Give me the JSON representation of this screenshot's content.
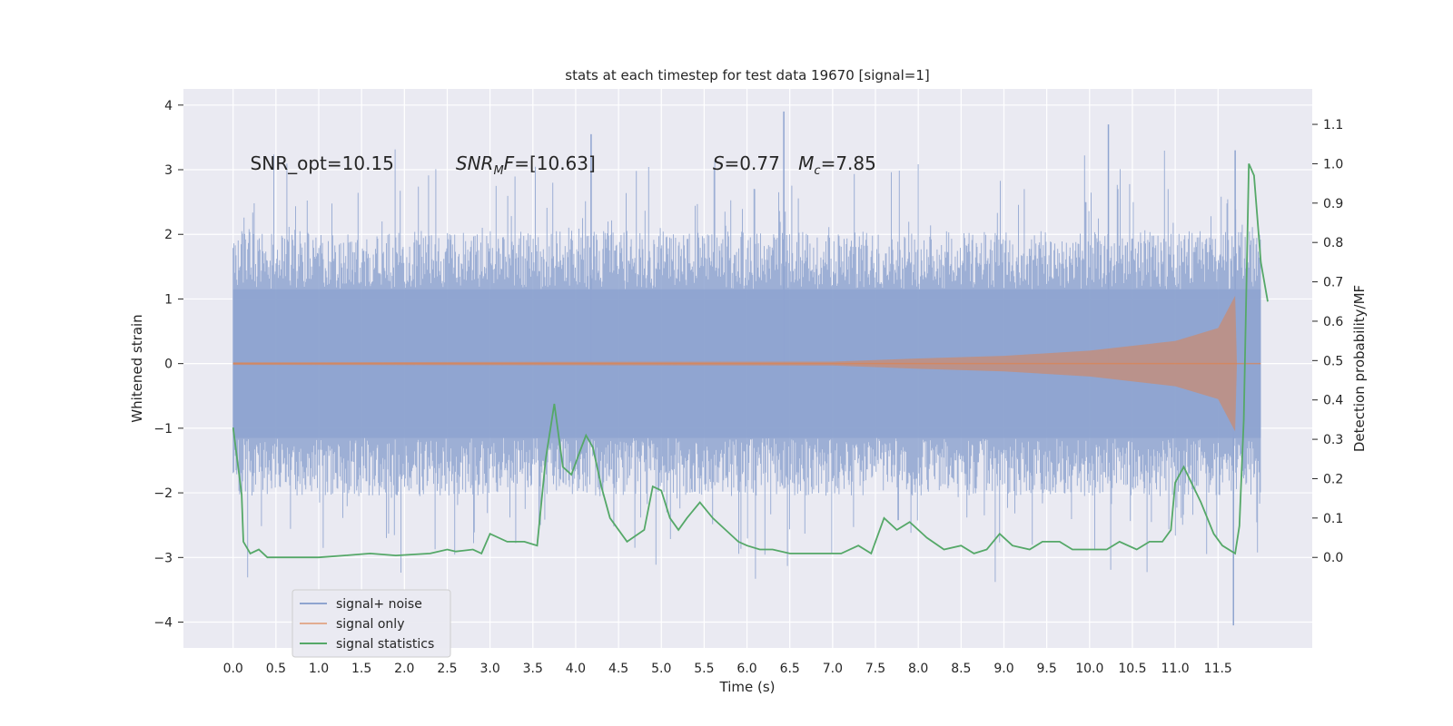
{
  "chart_data": {
    "type": "line",
    "title": "stats at each timestep for test data 19670 [signal=1]",
    "xlabel": "Time (s)",
    "ylabel": "Whitened strain",
    "y2label": "Detection probability/MF",
    "xlim": [
      -0.58,
      12.6
    ],
    "ylim": [
      -4.4,
      4.25
    ],
    "y2lim": [
      -0.23,
      1.19
    ],
    "xticks": [
      0.0,
      0.5,
      1.0,
      1.5,
      2.0,
      2.5,
      3.0,
      3.5,
      4.0,
      4.5,
      5.0,
      5.5,
      6.0,
      6.5,
      7.0,
      7.5,
      8.0,
      8.5,
      9.0,
      9.5,
      10.0,
      10.5,
      11.0,
      11.5
    ],
    "xticklabels": [
      "0.0",
      "0.5",
      "1.0",
      "1.5",
      "2.0",
      "2.5",
      "3.0",
      "3.5",
      "4.0",
      "4.5",
      "5.0",
      "5.5",
      "6.0",
      "6.5",
      "7.0",
      "7.5",
      "8.0",
      "8.5",
      "9.0",
      "9.5",
      "10.0",
      "10.5",
      "11.0",
      "11.5"
    ],
    "yticks": [
      -4,
      -3,
      -2,
      -1,
      0,
      1,
      2,
      3,
      4
    ],
    "yticklabels": [
      "−4",
      "−3",
      "−2",
      "−1",
      "0",
      "1",
      "2",
      "3",
      "4"
    ],
    "y2ticks": [
      0.0,
      0.1,
      0.2,
      0.3,
      0.4,
      0.5,
      0.6,
      0.7,
      0.8,
      0.9,
      1.0,
      1.1
    ],
    "y2ticklabels": [
      "0.0",
      "0.1",
      "0.2",
      "0.3",
      "0.4",
      "0.5",
      "0.6",
      "0.7",
      "0.8",
      "0.9",
      "1.0",
      "1.1"
    ],
    "grid": true,
    "legend_position": "bottom-left",
    "annotations": [
      {
        "text": "SNR_opt=10.15",
        "x": 0.2,
        "y": 3.1
      },
      {
        "text": "SNRMF=[10.63]",
        "x": 2.6,
        "y": 3.1
      },
      {
        "text": "S=0.77",
        "x": 5.6,
        "y": 3.1
      },
      {
        "text": "Mc=7.85",
        "x": 6.6,
        "y": 3.1
      }
    ],
    "series": [
      {
        "name": "signal+ noise",
        "color": "#8fa4d0",
        "t_start": 0.0,
        "t_end": 12.0,
        "envelope_upper": 1.15,
        "envelope_lower": -1.15,
        "spike_max": 3.9,
        "spike_min": -4.05
      },
      {
        "name": "signal only",
        "color": "#dd8452",
        "t_start": 0.0,
        "t_end": 12.0,
        "amplitude_points": [
          [
            0.0,
            0.02
          ],
          [
            7.0,
            0.03
          ],
          [
            8.0,
            0.08
          ],
          [
            9.0,
            0.12
          ],
          [
            10.0,
            0.2
          ],
          [
            11.0,
            0.35
          ],
          [
            11.5,
            0.55
          ],
          [
            11.7,
            1.05
          ],
          [
            11.72,
            0.02
          ]
        ]
      },
      {
        "name": "signal statistics",
        "color": "#55a868",
        "axis": "right",
        "points": [
          [
            0.0,
            0.33
          ],
          [
            0.1,
            0.16
          ],
          [
            0.12,
            0.04
          ],
          [
            0.2,
            0.01
          ],
          [
            0.3,
            0.02
          ],
          [
            0.4,
            0.0
          ],
          [
            0.5,
            0.0
          ],
          [
            0.8,
            0.0
          ],
          [
            1.0,
            0.0
          ],
          [
            1.3,
            0.005
          ],
          [
            1.6,
            0.01
          ],
          [
            1.9,
            0.005
          ],
          [
            2.3,
            0.01
          ],
          [
            2.5,
            0.02
          ],
          [
            2.6,
            0.015
          ],
          [
            2.8,
            0.02
          ],
          [
            2.9,
            0.01
          ],
          [
            3.0,
            0.06
          ],
          [
            3.2,
            0.04
          ],
          [
            3.4,
            0.04
          ],
          [
            3.55,
            0.03
          ],
          [
            3.65,
            0.25
          ],
          [
            3.75,
            0.39
          ],
          [
            3.85,
            0.23
          ],
          [
            3.95,
            0.21
          ],
          [
            4.05,
            0.27
          ],
          [
            4.12,
            0.31
          ],
          [
            4.2,
            0.28
          ],
          [
            4.3,
            0.18
          ],
          [
            4.4,
            0.1
          ],
          [
            4.6,
            0.04
          ],
          [
            4.8,
            0.07
          ],
          [
            4.9,
            0.18
          ],
          [
            5.0,
            0.17
          ],
          [
            5.1,
            0.1
          ],
          [
            5.2,
            0.07
          ],
          [
            5.3,
            0.1
          ],
          [
            5.45,
            0.14
          ],
          [
            5.6,
            0.1
          ],
          [
            5.75,
            0.07
          ],
          [
            5.9,
            0.04
          ],
          [
            6.0,
            0.03
          ],
          [
            6.15,
            0.02
          ],
          [
            6.3,
            0.02
          ],
          [
            6.5,
            0.01
          ],
          [
            6.8,
            0.01
          ],
          [
            7.1,
            0.01
          ],
          [
            7.3,
            0.03
          ],
          [
            7.45,
            0.01
          ],
          [
            7.6,
            0.1
          ],
          [
            7.75,
            0.07
          ],
          [
            7.9,
            0.09
          ],
          [
            8.1,
            0.05
          ],
          [
            8.3,
            0.02
          ],
          [
            8.5,
            0.03
          ],
          [
            8.65,
            0.01
          ],
          [
            8.8,
            0.02
          ],
          [
            8.95,
            0.06
          ],
          [
            9.1,
            0.03
          ],
          [
            9.3,
            0.02
          ],
          [
            9.45,
            0.04
          ],
          [
            9.65,
            0.04
          ],
          [
            9.8,
            0.02
          ],
          [
            10.0,
            0.02
          ],
          [
            10.2,
            0.02
          ],
          [
            10.35,
            0.04
          ],
          [
            10.55,
            0.02
          ],
          [
            10.7,
            0.04
          ],
          [
            10.85,
            0.04
          ],
          [
            10.95,
            0.07
          ],
          [
            11.0,
            0.19
          ],
          [
            11.1,
            0.23
          ],
          [
            11.3,
            0.14
          ],
          [
            11.45,
            0.06
          ],
          [
            11.55,
            0.03
          ],
          [
            11.7,
            0.01
          ],
          [
            11.75,
            0.08
          ],
          [
            11.8,
            0.35
          ],
          [
            11.86,
            1.0
          ],
          [
            11.92,
            0.97
          ],
          [
            12.0,
            0.75
          ],
          [
            12.08,
            0.65
          ]
        ]
      }
    ]
  }
}
